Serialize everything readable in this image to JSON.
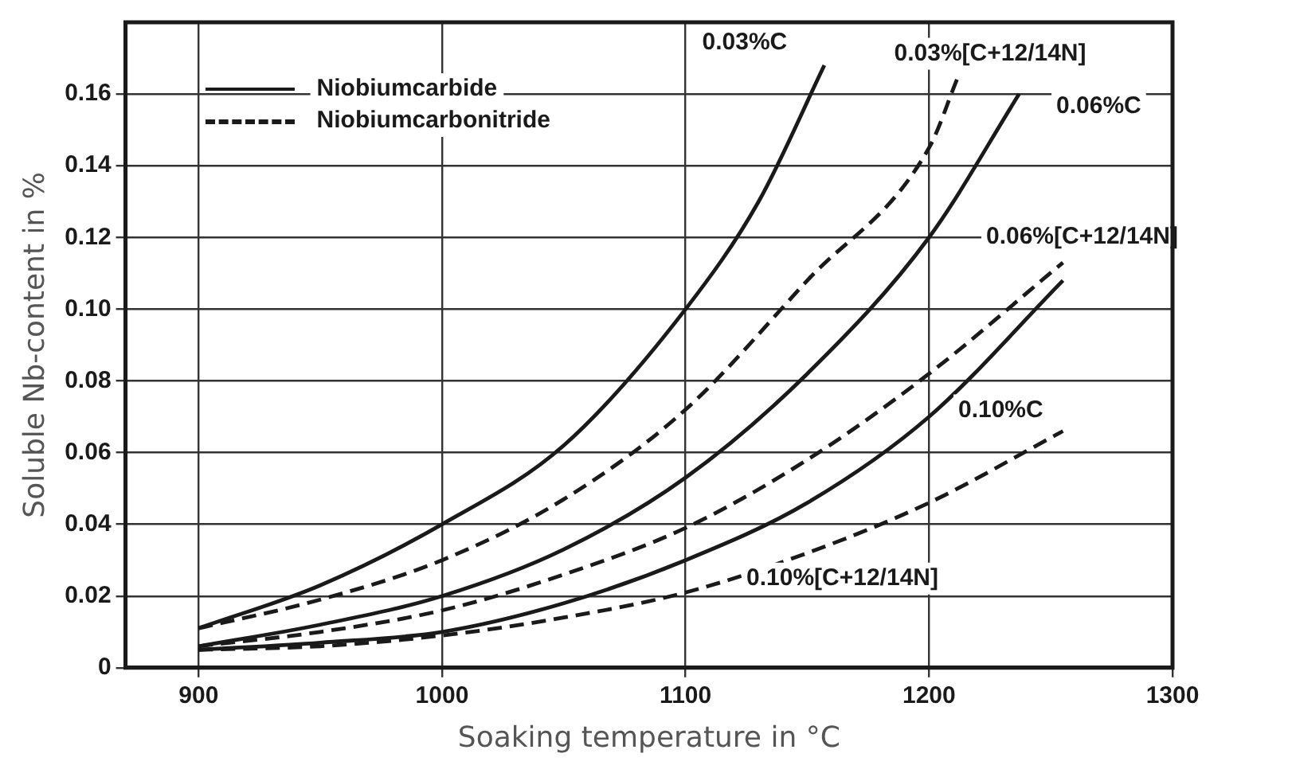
{
  "chart_data": {
    "type": "line",
    "xlabel": "Soaking temperature in °C",
    "ylabel": "Soluble Nb-content in %",
    "xlim": [
      870,
      1300
    ],
    "xticks": [
      900,
      1000,
      1100,
      1200,
      1300
    ],
    "ylim": [
      0,
      0.18
    ],
    "yticks": [
      0,
      0.02,
      0.04,
      0.06,
      0.08,
      {
        "value": 0.1,
        "label": "0.10"
      },
      0.12,
      0.14,
      0.16
    ],
    "grid": true,
    "marker": "none",
    "series": [
      {
        "name": "0.03%C",
        "color": "#1a1a1a",
        "line_style": "solid",
        "x": [
          900,
          950,
          1000,
          1050,
          1100,
          1130,
          1157
        ],
        "values": [
          0.011,
          0.023,
          0.04,
          0.062,
          0.1,
          0.13,
          0.168
        ]
      },
      {
        "name": "0.03%[C+12/14N]",
        "color": "#1a1a1a",
        "line_style": "dashed",
        "x": [
          900,
          950,
          1000,
          1050,
          1100,
          1150,
          1200,
          1212
        ],
        "values": [
          0.011,
          0.019,
          0.03,
          0.047,
          0.072,
          0.108,
          0.145,
          0.165
        ]
      },
      {
        "name": "0.06%C",
        "color": "#1a1a1a",
        "line_style": "solid",
        "x": [
          900,
          950,
          1000,
          1050,
          1100,
          1150,
          1200,
          1237
        ],
        "values": [
          0.006,
          0.012,
          0.02,
          0.033,
          0.053,
          0.082,
          0.12,
          0.16
        ]
      },
      {
        "name": "0.06%[C+12/14N]",
        "color": "#1a1a1a",
        "line_style": "dashed",
        "x": [
          900,
          950,
          1000,
          1050,
          1100,
          1150,
          1200,
          1255
        ],
        "values": [
          0.006,
          0.01,
          0.016,
          0.026,
          0.039,
          0.058,
          0.082,
          0.113
        ]
      },
      {
        "name": "0.10%C",
        "color": "#1a1a1a",
        "line_style": "solid",
        "x": [
          900,
          950,
          1000,
          1050,
          1100,
          1150,
          1200,
          1255
        ],
        "values": [
          0.005,
          0.007,
          0.01,
          0.018,
          0.03,
          0.046,
          0.07,
          0.108
        ]
      },
      {
        "name": "0.10%[C+12/14N]",
        "color": "#1a1a1a",
        "line_style": "dashed",
        "x": [
          900,
          950,
          1000,
          1050,
          1100,
          1150,
          1200,
          1255
        ],
        "values": [
          0.005,
          0.006,
          0.009,
          0.014,
          0.021,
          0.032,
          0.046,
          0.066
        ]
      }
    ],
    "annotations": [
      "Niobiumcarbide",
      "Niobiumcarbonitride"
    ]
  }
}
